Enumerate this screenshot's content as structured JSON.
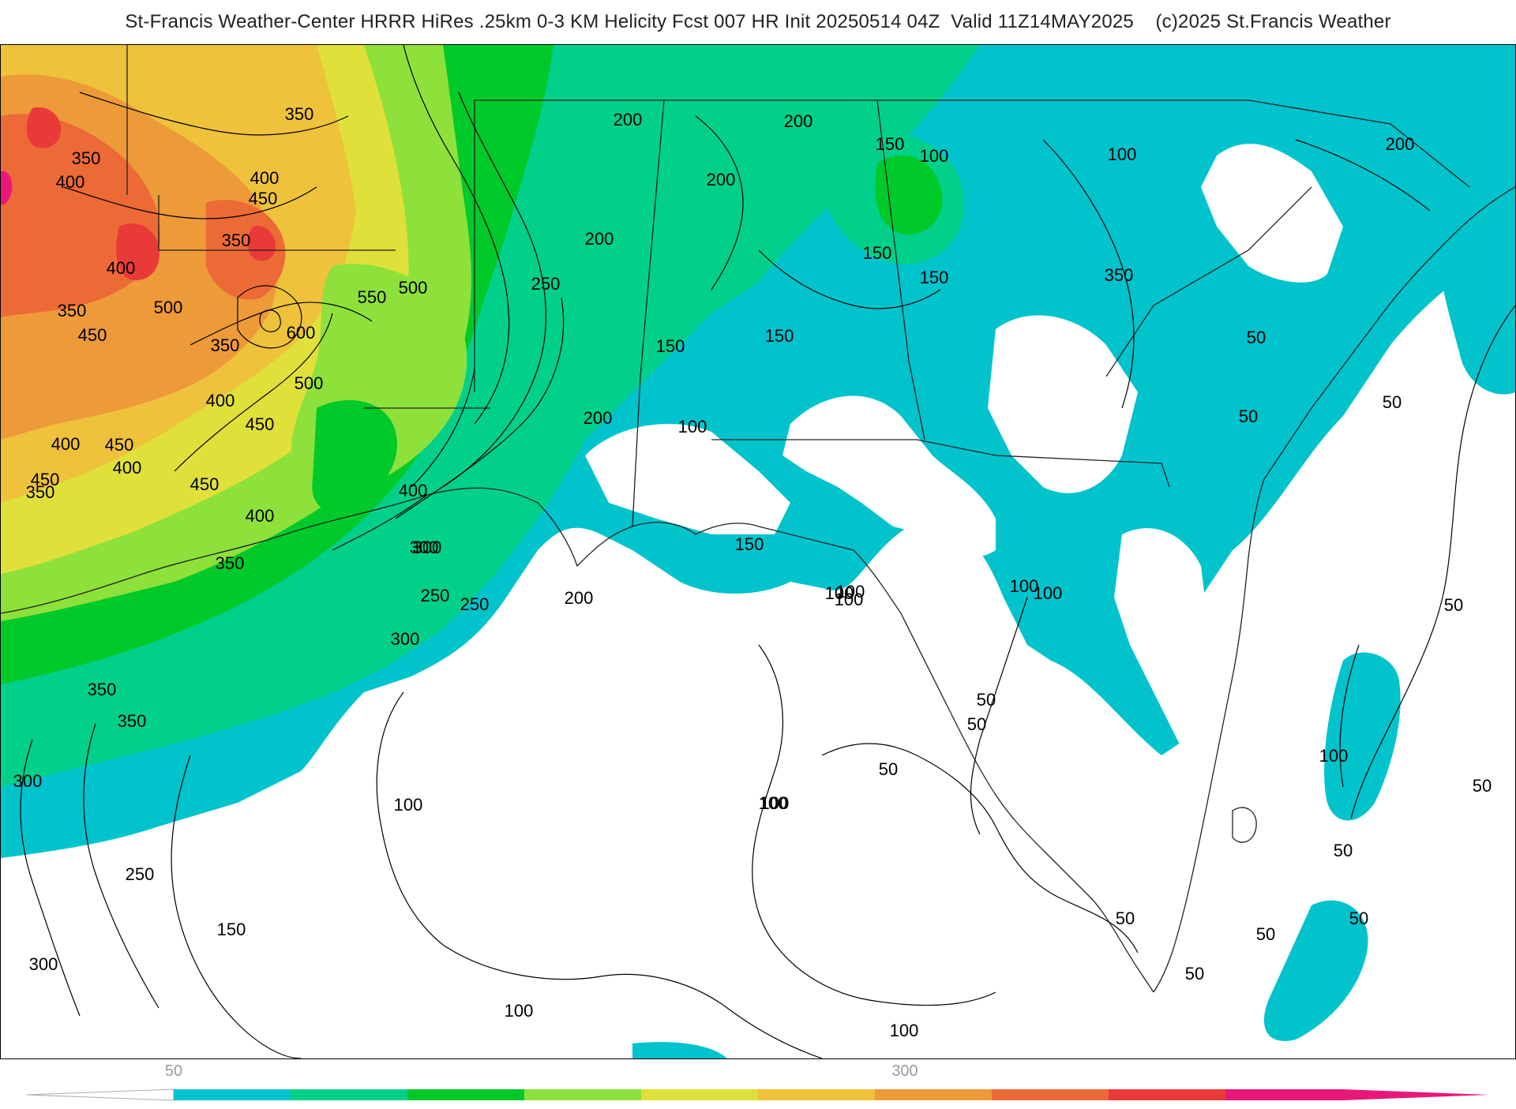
{
  "title": "St-Francis Weather-Center HRRR HiRes .25km 0-3 KM Helicity Fcst 007 HR Init 20250514 04Z  Valid 11Z14MAY2025    (c)2025 St.Francis Weather",
  "colorbar": {
    "tick_labels": [
      "50",
      "300"
    ],
    "colors": [
      "#00c3cc",
      "#00d08a",
      "#00c92a",
      "#8ee03b",
      "#e0e03a",
      "#eec23a",
      "#ed9a38",
      "#ec6a36",
      "#e93a3a",
      "#e8187a"
    ]
  },
  "contour_labels": [
    "350",
    "350",
    "400",
    "400",
    "450",
    "350",
    "400",
    "350",
    "500",
    "450",
    "550",
    "500",
    "600",
    "350",
    "500",
    "400",
    "450",
    "450",
    "400",
    "450",
    "400",
    "350",
    "450",
    "400",
    "350",
    "300",
    "250",
    "300",
    "200",
    "200",
    "200",
    "150",
    "150",
    "100",
    "100",
    "200",
    "200",
    "150",
    "150",
    "100",
    "350",
    "200",
    "150",
    "250",
    "400",
    "300",
    "250",
    "200",
    "150",
    "100",
    "350",
    "350",
    "300",
    "250",
    "150",
    "300",
    "100",
    "100",
    "100",
    "100",
    "50",
    "50",
    "50",
    "50",
    "50",
    "50",
    "50",
    "50",
    "50",
    "100",
    "100",
    "100",
    "50",
    "100",
    "50",
    "100",
    "50",
    "50",
    "100"
  ]
}
